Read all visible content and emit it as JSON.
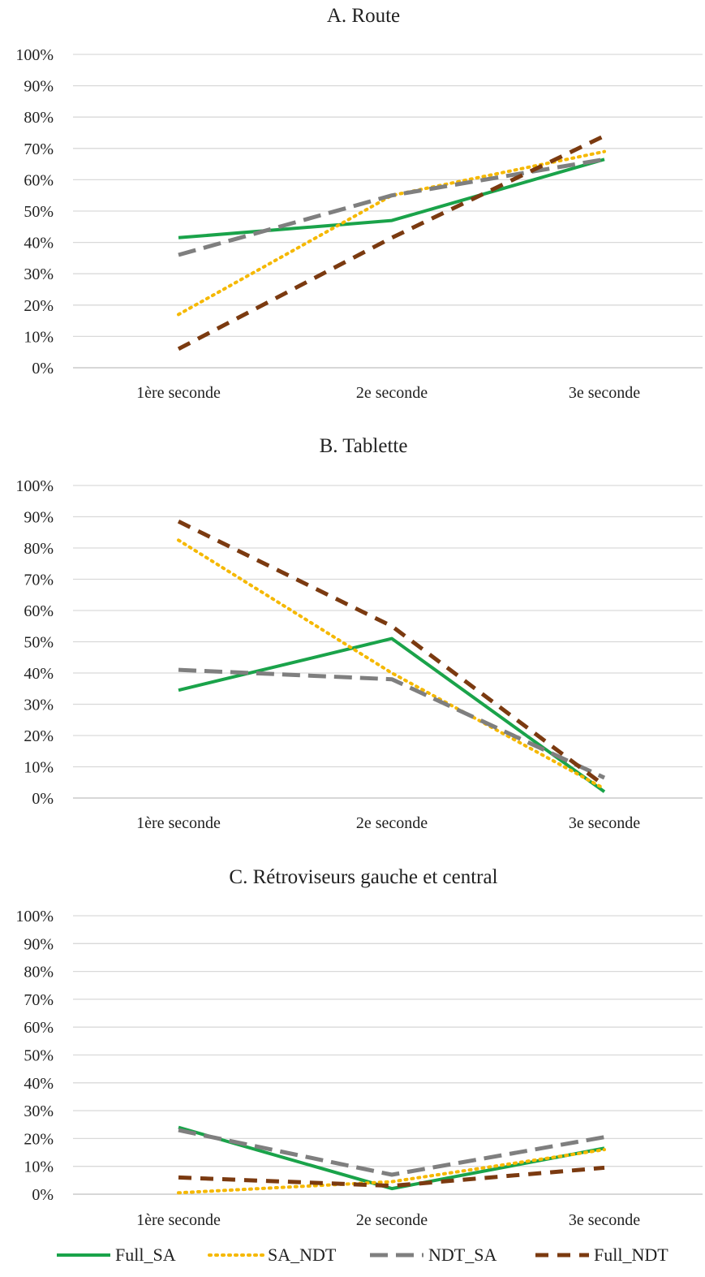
{
  "chart_data": [
    {
      "type": "line",
      "title": "A. Route",
      "categories": [
        "1ère seconde",
        "2e seconde",
        "3e seconde"
      ],
      "ylim": [
        0,
        100
      ],
      "yticks": [
        "0%",
        "10%",
        "20%",
        "30%",
        "40%",
        "50%",
        "60%",
        "70%",
        "80%",
        "90%",
        "100%"
      ],
      "grid": true,
      "series": [
        {
          "name": "Full_SA",
          "values": [
            41.5,
            47,
            66.5
          ]
        },
        {
          "name": "SA_NDT",
          "values": [
            17,
            55,
            69
          ]
        },
        {
          "name": "NDT_SA",
          "values": [
            36,
            55,
            66.5
          ]
        },
        {
          "name": "Full_NDT",
          "values": [
            6,
            41.5,
            74
          ]
        }
      ]
    },
    {
      "type": "line",
      "title": "B. Tablette",
      "categories": [
        "1ère seconde",
        "2e seconde",
        "3e seconde"
      ],
      "ylim": [
        0,
        100
      ],
      "yticks": [
        "0%",
        "10%",
        "20%",
        "30%",
        "40%",
        "50%",
        "60%",
        "70%",
        "80%",
        "90%",
        "100%"
      ],
      "grid": true,
      "series": [
        {
          "name": "Full_SA",
          "values": [
            34.5,
            51,
            2
          ]
        },
        {
          "name": "SA_NDT",
          "values": [
            82.5,
            40,
            3
          ]
        },
        {
          "name": "NDT_SA",
          "values": [
            41,
            38,
            6.5
          ]
        },
        {
          "name": "Full_NDT",
          "values": [
            88.5,
            55,
            4
          ]
        }
      ]
    },
    {
      "type": "line",
      "title": "C. Rétroviseurs gauche et central",
      "categories": [
        "1ère seconde",
        "2e seconde",
        "3e seconde"
      ],
      "ylim": [
        0,
        100
      ],
      "yticks": [
        "0%",
        "10%",
        "20%",
        "30%",
        "40%",
        "50%",
        "60%",
        "70%",
        "80%",
        "90%",
        "100%"
      ],
      "grid": true,
      "series": [
        {
          "name": "Full_SA",
          "values": [
            24,
            2,
            16.5
          ]
        },
        {
          "name": "SA_NDT",
          "values": [
            0.5,
            4.5,
            16
          ]
        },
        {
          "name": "NDT_SA",
          "values": [
            23,
            7,
            20.5
          ]
        },
        {
          "name": "Full_NDT",
          "values": [
            6,
            3,
            9.5
          ]
        }
      ]
    }
  ],
  "legend": {
    "position": "bottom",
    "items": [
      {
        "name": "Full_SA",
        "color": "#1aa34a",
        "style": "solid"
      },
      {
        "name": "SA_NDT",
        "color": "#f5b800",
        "style": "dotted"
      },
      {
        "name": "NDT_SA",
        "color": "#7f7f7f",
        "style": "long-dash"
      },
      {
        "name": "Full_NDT",
        "color": "#7b3a10",
        "style": "dash"
      }
    ]
  },
  "colors": {
    "gridline": "#d9d9d9",
    "axis": "#bfbfbf"
  }
}
